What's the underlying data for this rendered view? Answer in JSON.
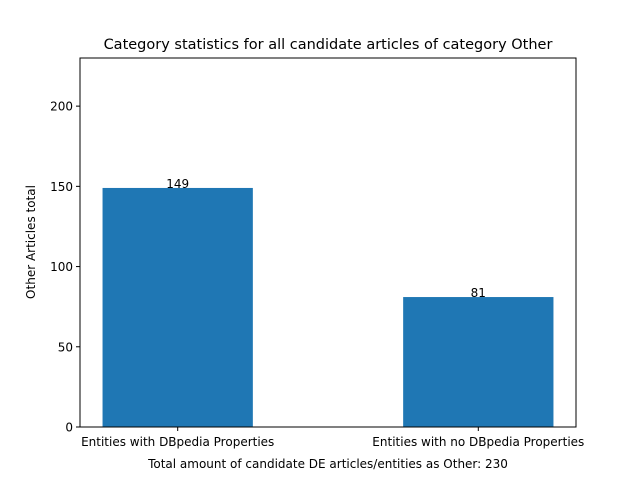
{
  "chart_data": {
    "type": "bar",
    "title": "Category statistics for all candidate articles of category Other",
    "xlabel": "Total amount of candidate DE articles/entities as Other: 230",
    "ylabel": "Other Articles total",
    "categories": [
      "Entities with DBpedia Properties",
      "Entities with no DBpedia Properties"
    ],
    "values": [
      149,
      81
    ],
    "data_labels": [
      "149",
      "81"
    ],
    "ylim": [
      0,
      230
    ],
    "yticks": [
      0,
      50,
      100,
      150,
      200
    ],
    "bar_color": "#1f77b4",
    "grid": false,
    "legend": "none"
  }
}
